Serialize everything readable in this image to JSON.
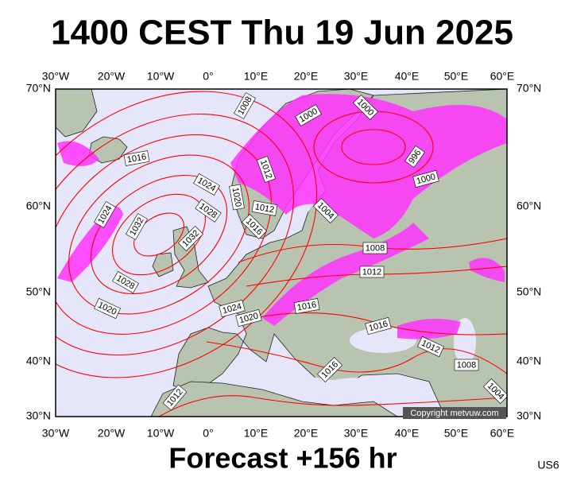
{
  "header": {
    "title": "1400 CEST Thu 19 Jun 2025"
  },
  "map": {
    "longitude_labels": [
      "30°W",
      "20°W",
      "10°W",
      "0°",
      "10°E",
      "20°E",
      "30°E",
      "40°E",
      "50°E",
      "60°E"
    ],
    "latitude_labels": [
      "70°N",
      "60°N",
      "50°N",
      "40°N",
      "30°N"
    ],
    "isobar_labels": [
      "1008",
      "1000",
      "1000",
      "996",
      "1000",
      "1016",
      "1024",
      "1012",
      "1020",
      "1028",
      "1012",
      "1016",
      "1004",
      "1024",
      "1032",
      "1032",
      "1008",
      "1012",
      "1028",
      "1020",
      "1024",
      "1020",
      "1016",
      "1016",
      "1012",
      "1008",
      "1016",
      "1004",
      "1012"
    ],
    "copyright": "Copyright metvuw.com"
  },
  "footer": {
    "forecast": "Forecast +156 hr",
    "model": "US6"
  }
}
